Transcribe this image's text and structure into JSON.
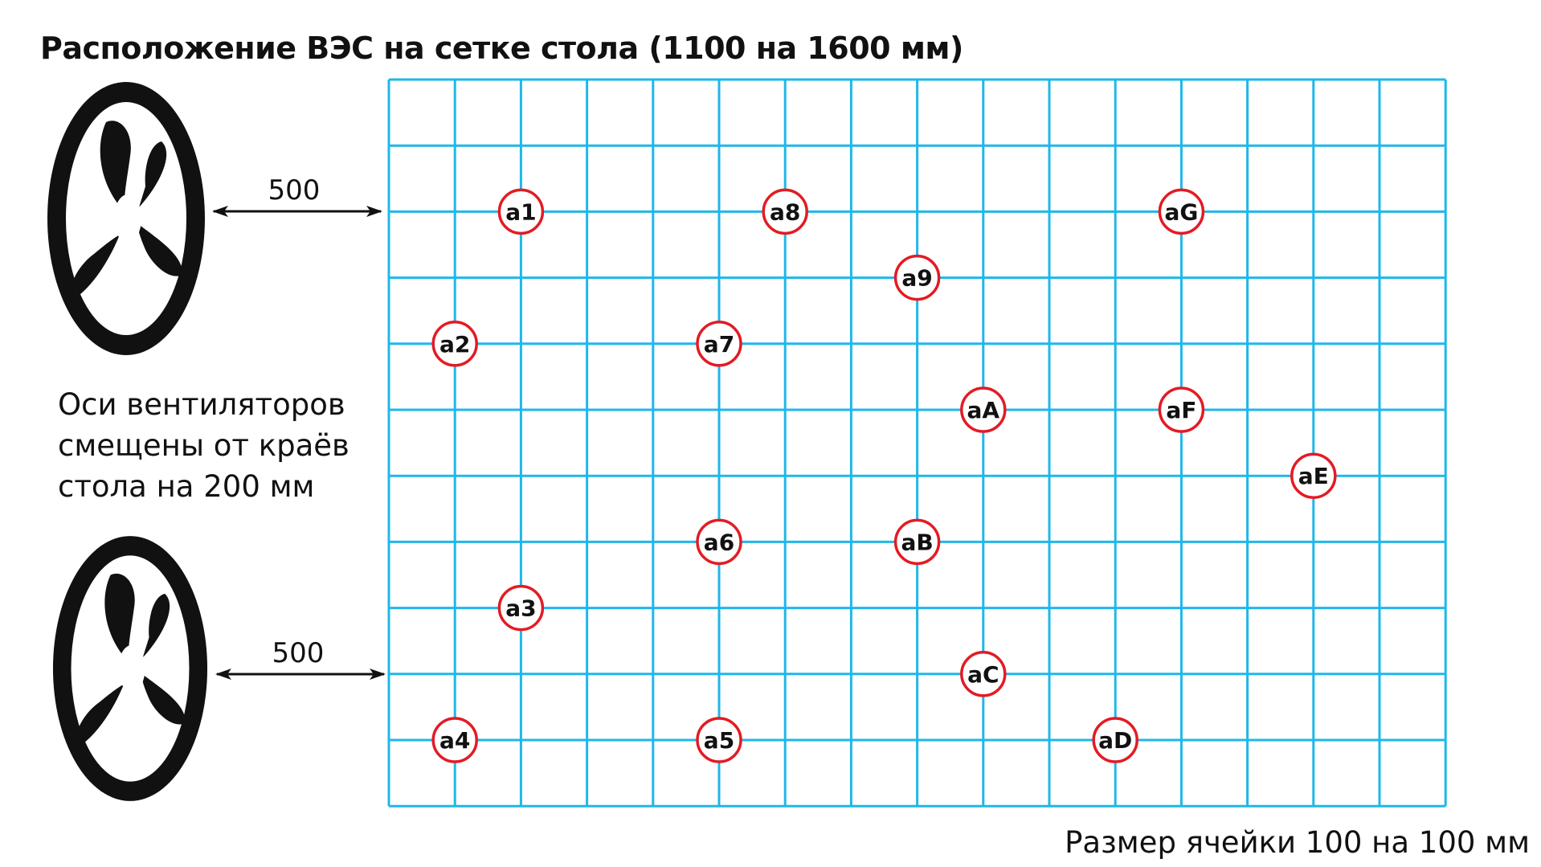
{
  "title": "Расположение ВЭС на сетке стола (1100 на 1600 мм)",
  "note_lines": [
    "Оси вентиляторов",
    "смещены от краёв",
    "стола на 200 мм"
  ],
  "cell_size_label": "Размер ячейки 100 на 100 мм",
  "fans": [
    {
      "name": "fan-top",
      "distance_label": "500"
    },
    {
      "name": "fan-bottom",
      "distance_label": "500"
    }
  ],
  "grid": {
    "columns": 16,
    "rows": 11,
    "line_color": "#1fb7ea"
  },
  "marker_style": {
    "stroke": "#e31b23",
    "fill": "#ffffff"
  },
  "markers": [
    {
      "label": "a1",
      "col": 2,
      "row": 2
    },
    {
      "label": "a2",
      "col": 1,
      "row": 4
    },
    {
      "label": "a3",
      "col": 2,
      "row": 8
    },
    {
      "label": "a4",
      "col": 1,
      "row": 10
    },
    {
      "label": "a5",
      "col": 5,
      "row": 10
    },
    {
      "label": "a6",
      "col": 5,
      "row": 7
    },
    {
      "label": "a7",
      "col": 5,
      "row": 4
    },
    {
      "label": "a8",
      "col": 6,
      "row": 2
    },
    {
      "label": "a9",
      "col": 8,
      "row": 3
    },
    {
      "label": "aA",
      "col": 9,
      "row": 5
    },
    {
      "label": "aB",
      "col": 8,
      "row": 7
    },
    {
      "label": "aC",
      "col": 9,
      "row": 9
    },
    {
      "label": "aD",
      "col": 11,
      "row": 10
    },
    {
      "label": "aE",
      "col": 14,
      "row": 6
    },
    {
      "label": "aF",
      "col": 12,
      "row": 5
    },
    {
      "label": "aG",
      "col": 12,
      "row": 2
    }
  ]
}
